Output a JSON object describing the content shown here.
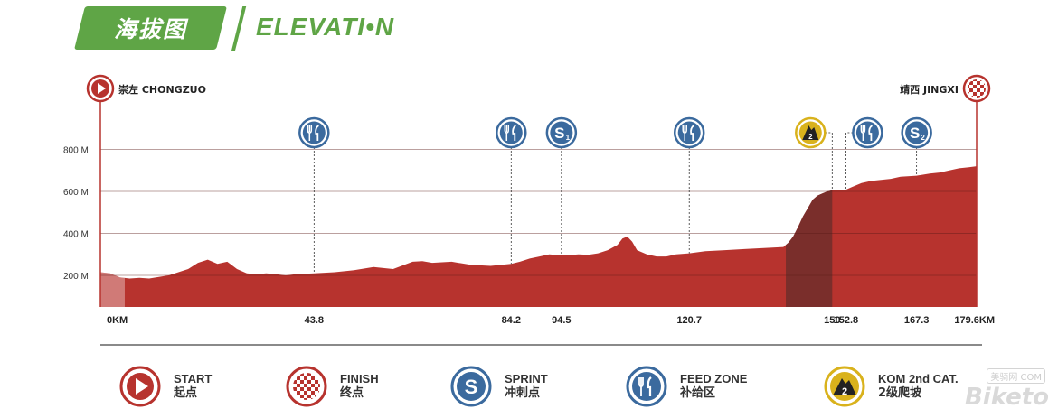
{
  "header": {
    "badge_cn": "海拔图",
    "title": "ELEVATI•N",
    "accent_color": "#5fa546"
  },
  "chart_data": {
    "type": "area",
    "xlabel": "",
    "ylabel": "",
    "xlim": [
      0,
      179.6
    ],
    "ylim": [
      50,
      800
    ],
    "y_ticks": [
      200,
      400,
      600,
      800
    ],
    "y_tick_labels": [
      "200 M",
      "400 M",
      "600 M",
      "800 M"
    ],
    "grid": true,
    "fill_color": "#b7332e",
    "climb_color": "#7a2e2b",
    "climb_range_km": [
      140.5,
      150
    ],
    "x_ticks": [
      0,
      43.8,
      84.2,
      94.5,
      120.7,
      150,
      152.8,
      167.3,
      179.6
    ],
    "x_tick_labels": [
      "0KM",
      "43.8",
      "84.2",
      "94.5",
      "120.7",
      "150",
      "152.8",
      "167.3",
      "179.6KM"
    ],
    "series": [
      {
        "x": [
          0,
          2,
          4,
          6,
          8,
          10,
          14,
          18,
          20,
          22,
          24,
          26,
          28,
          30,
          32,
          34,
          36,
          38,
          40,
          43.8,
          48,
          52,
          56,
          60,
          64,
          66,
          68,
          72,
          76,
          80,
          84.2,
          86,
          88,
          90,
          92,
          94.5,
          98,
          100,
          102,
          104,
          106,
          107,
          108,
          109,
          110,
          112,
          114,
          116,
          118,
          120.7,
          124,
          128,
          132,
          136,
          140,
          141,
          142,
          143,
          144,
          145,
          146,
          147,
          148,
          149,
          150,
          152.8,
          154,
          156,
          158,
          160,
          162,
          164,
          167.3,
          170,
          172,
          174,
          176,
          178,
          179.6
        ],
        "y": [
          215,
          210,
          190,
          185,
          188,
          185,
          200,
          230,
          260,
          275,
          255,
          265,
          230,
          210,
          205,
          210,
          205,
          200,
          205,
          210,
          215,
          225,
          240,
          230,
          265,
          268,
          260,
          265,
          250,
          245,
          255,
          265,
          280,
          290,
          300,
          295,
          300,
          298,
          305,
          320,
          345,
          375,
          385,
          360,
          320,
          300,
          290,
          290,
          300,
          305,
          315,
          320,
          325,
          330,
          335,
          355,
          385,
          430,
          480,
          520,
          560,
          580,
          590,
          600,
          605,
          608,
          620,
          640,
          650,
          655,
          660,
          670,
          675,
          685,
          690,
          700,
          710,
          715,
          720
        ]
      }
    ]
  },
  "route": {
    "start_name": "崇左 CHONGZUO",
    "finish_name": "靖西 JINGXI"
  },
  "markers": [
    {
      "type": "feed",
      "km": 43.8
    },
    {
      "type": "feed",
      "km": 84.2
    },
    {
      "type": "sprint",
      "km": 94.5,
      "label": "1"
    },
    {
      "type": "feed",
      "km": 120.7
    },
    {
      "type": "kom",
      "km": 150,
      "label": "2"
    },
    {
      "type": "feed",
      "km": 152.8
    },
    {
      "type": "sprint",
      "km": 167.3,
      "label": "2"
    }
  ],
  "legend": [
    {
      "en": "START",
      "cn": "起点"
    },
    {
      "en": "FINISH",
      "cn": "终点"
    },
    {
      "en": "SPRINT",
      "cn": "冲刺点"
    },
    {
      "en": "FEED ZONE",
      "cn": "补给区"
    },
    {
      "en": "KOM 2nd CAT.",
      "cn": "2级爬坡"
    }
  ],
  "watermark": {
    "text": "Biketo",
    "sub": "美骑网 COM"
  },
  "colors": {
    "start_red": "#b7332e",
    "sprint_blue": "#3b6a9e",
    "kom_gold": "#d9b21c",
    "axis": "#333333"
  }
}
